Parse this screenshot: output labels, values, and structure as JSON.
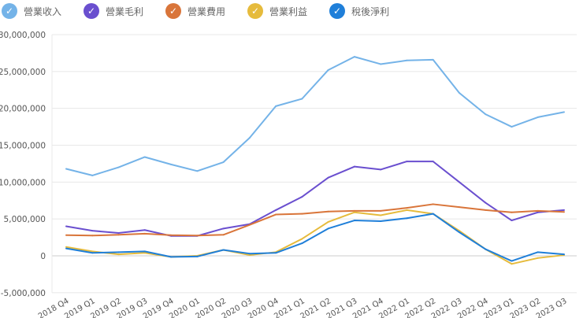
{
  "chart_data": {
    "type": "line",
    "categories": [
      "2018 Q4",
      "2019 Q1",
      "2019 Q2",
      "2019 Q3",
      "2019 Q4",
      "2020 Q1",
      "2020 Q2",
      "2020 Q3",
      "2020 Q4",
      "2021 Q1",
      "2021 Q2",
      "2021 Q3",
      "2021 Q4",
      "2022 Q1",
      "2022 Q2",
      "2022 Q3",
      "2022 Q4",
      "2023 Q1",
      "2023 Q2",
      "2023 Q3"
    ],
    "ylim": [
      -5000000,
      30000000
    ],
    "yticks": [
      -5000000,
      0,
      5000000,
      10000000,
      15000000,
      20000000,
      25000000,
      30000000
    ],
    "ytick_labels": [
      "-5,000,000",
      "0",
      "5,000,000",
      "10,000,000",
      "15,000,000",
      "20,000,000",
      "25,000,000",
      "30,000,000"
    ],
    "grid": true,
    "legend_position": "top-left",
    "series": [
      {
        "name": "營業收入",
        "color": "#74b3e8",
        "values": [
          11800000,
          10900000,
          12000000,
          13400000,
          12400000,
          11500000,
          12700000,
          16000000,
          20300000,
          21300000,
          25200000,
          27000000,
          26000000,
          26500000,
          26600000,
          22100000,
          19200000,
          17500000,
          18800000,
          19500000
        ]
      },
      {
        "name": "營業毛利",
        "color": "#6a4fcf",
        "values": [
          4000000,
          3400000,
          3100000,
          3500000,
          2700000,
          2700000,
          3700000,
          4300000,
          6200000,
          8000000,
          10600000,
          12100000,
          11700000,
          12800000,
          12800000,
          10000000,
          7200000,
          4800000,
          5900000,
          6200000
        ]
      },
      {
        "name": "營業費用",
        "color": "#d9753a",
        "values": [
          2800000,
          2750000,
          2850000,
          3000000,
          2800000,
          2750000,
          2850000,
          4200000,
          5600000,
          5700000,
          6000000,
          6100000,
          6100000,
          6500000,
          7000000,
          6600000,
          6200000,
          5900000,
          6100000,
          5950000
        ]
      },
      {
        "name": "營業利益",
        "color": "#e6bb3c",
        "values": [
          1200000,
          600000,
          200000,
          400000,
          -150000,
          0,
          800000,
          100000,
          500000,
          2300000,
          4600000,
          5900000,
          5500000,
          6200000,
          5700000,
          3400000,
          900000,
          -1100000,
          -300000,
          100000
        ]
      },
      {
        "name": "稅後淨利",
        "color": "#1f7fd9",
        "values": [
          1000000,
          400000,
          500000,
          600000,
          -150000,
          -100000,
          800000,
          300000,
          400000,
          1700000,
          3700000,
          4800000,
          4700000,
          5100000,
          5700000,
          3200000,
          900000,
          -700000,
          500000,
          200000
        ]
      }
    ]
  }
}
